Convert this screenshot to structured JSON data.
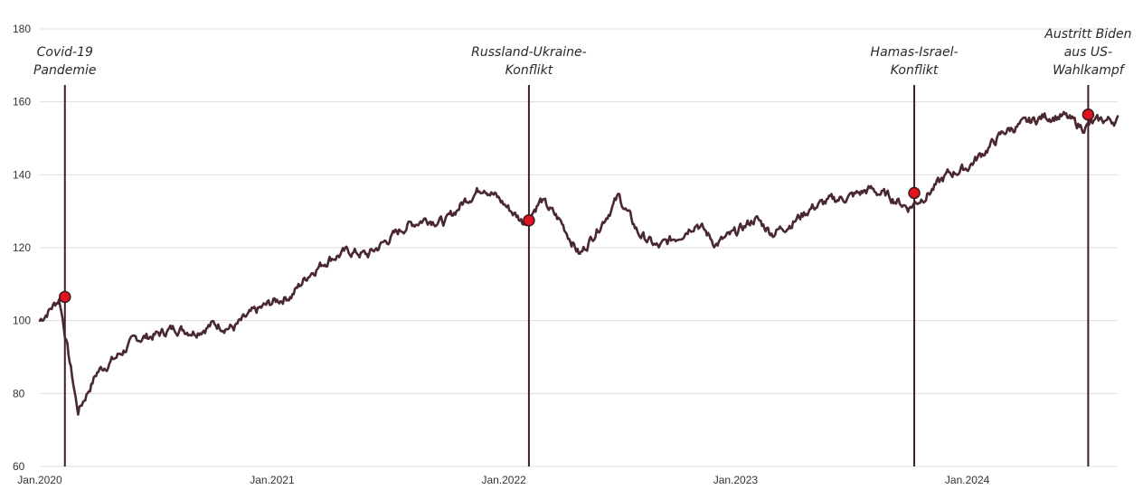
{
  "chart_data": {
    "type": "line",
    "title": "",
    "xlabel": "",
    "ylabel": "",
    "ylim": [
      60,
      180
    ],
    "y_ticks": [
      60,
      80,
      100,
      120,
      140,
      160,
      180
    ],
    "x_ticks": [
      "Jan.2020",
      "Jan.2021",
      "Jan.2022",
      "Jan.2023",
      "Jan.2024"
    ],
    "x_range": [
      "2020-01",
      "2024-09"
    ],
    "grid": "horizontal",
    "line_color": "#4a2830",
    "marker_color": "#e0141e",
    "series": [
      {
        "x": [
          "2020-01",
          "2020-02",
          "2020-03",
          "2020-04",
          "2020-05",
          "2020-06",
          "2020-07",
          "2020-08",
          "2020-09",
          "2020-10",
          "2020-11",
          "2020-12",
          "2021-01",
          "2021-02",
          "2021-03",
          "2021-04",
          "2021-05",
          "2021-06",
          "2021-07",
          "2021-08",
          "2021-09",
          "2021-10",
          "2021-11",
          "2021-12",
          "2022-01",
          "2022-02",
          "2022-03",
          "2022-04",
          "2022-05",
          "2022-06",
          "2022-07",
          "2022-08",
          "2022-09",
          "2022-10",
          "2022-11",
          "2022-12",
          "2023-01",
          "2023-02",
          "2023-03",
          "2023-04",
          "2023-05",
          "2023-06",
          "2023-07",
          "2023-08",
          "2023-09",
          "2023-10",
          "2023-11",
          "2023-12",
          "2024-01",
          "2024-02",
          "2024-03",
          "2024-04",
          "2024-05",
          "2024-06",
          "2024-07",
          "2024-08",
          "2024-09"
        ],
        "values": [
          100,
          106,
          75,
          86,
          90,
          95,
          96,
          98,
          97,
          99,
          98,
          102,
          105,
          107,
          113,
          117,
          119,
          118,
          122,
          126,
          128,
          127,
          133,
          137,
          132,
          127,
          133,
          127,
          118,
          126,
          134,
          124,
          120,
          123,
          127,
          121,
          124,
          128,
          124,
          127,
          131,
          133,
          134,
          136,
          134,
          131,
          135,
          140,
          142,
          147,
          152,
          154,
          156,
          156,
          153,
          155,
          155
        ]
      }
    ],
    "events": [
      {
        "label_lines": [
          "Covid-19",
          "Pandemie"
        ],
        "x": "2020-02",
        "value": 106.5
      },
      {
        "label_lines": [
          "Russland-Ukraine-",
          "Konflikt"
        ],
        "x": "2022-02",
        "value": 127.5
      },
      {
        "label_lines": [
          "Hamas-Israel-",
          "Konflikt"
        ],
        "x": "2023-10",
        "value": 135
      },
      {
        "label_lines": [
          "Austritt Biden",
          "aus US-",
          "Wahlkampf"
        ],
        "x": "2024-07",
        "value": 156.5
      }
    ]
  }
}
